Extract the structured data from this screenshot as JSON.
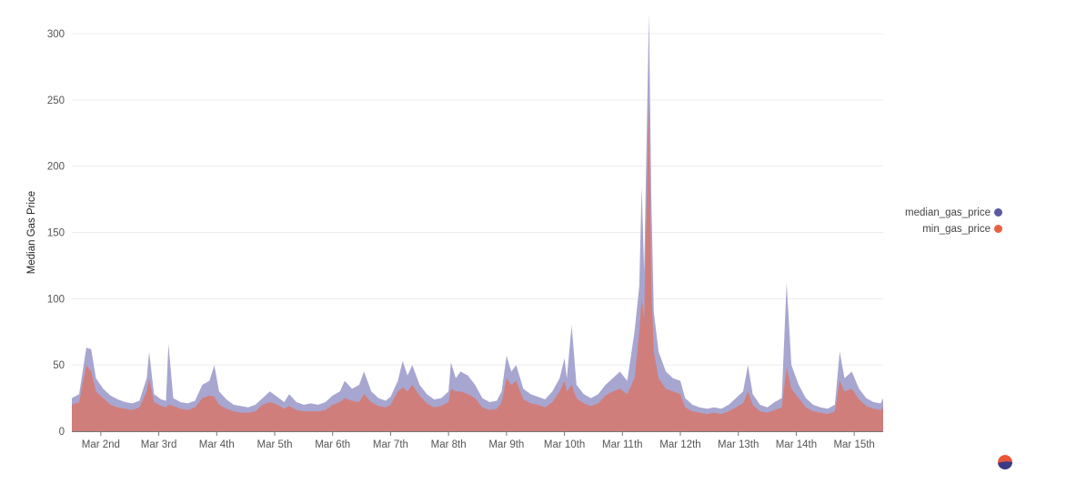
{
  "chart_data": {
    "type": "area",
    "stacked": false,
    "ylabel": "Median Gas Price",
    "xlabel": "",
    "ylim": [
      0,
      315
    ],
    "yticks": [
      0,
      50,
      100,
      150,
      200,
      250,
      300
    ],
    "xlim": [
      "2021-03-01T12:00",
      "2021-03-15T12:00"
    ],
    "categories": [
      "Mar 2nd",
      "Mar 3rd",
      "Mar 4th",
      "Mar 5th",
      "Mar 6th",
      "Mar 7th",
      "Mar 8th",
      "Mar 9th",
      "Mar 10th",
      "Mar 11th",
      "Mar 12th",
      "Mar 13th",
      "Mar 14th",
      "Mar 15th"
    ],
    "grid": true,
    "legend_position": "right",
    "series": [
      {
        "name": "median_gas_price",
        "color": "#a7a6d0",
        "values": [
          [
            "2021-03-01T12:00",
            25
          ],
          [
            "2021-03-01T15:00",
            28
          ],
          [
            "2021-03-01T18:00",
            63
          ],
          [
            "2021-03-01T20:00",
            62
          ],
          [
            "2021-03-01T22:00",
            40
          ],
          [
            "2021-03-02T01:00",
            32
          ],
          [
            "2021-03-02T04:00",
            27
          ],
          [
            "2021-03-02T07:00",
            24
          ],
          [
            "2021-03-02T10:00",
            22
          ],
          [
            "2021-03-02T13:00",
            21
          ],
          [
            "2021-03-02T16:00",
            23
          ],
          [
            "2021-03-02T19:00",
            40
          ],
          [
            "2021-03-02T20:00",
            60
          ],
          [
            "2021-03-02T22:00",
            28
          ],
          [
            "2021-03-03T01:00",
            24
          ],
          [
            "2021-03-03T03:00",
            23
          ],
          [
            "2021-03-03T04:00",
            66
          ],
          [
            "2021-03-03T06:00",
            25
          ],
          [
            "2021-03-03T09:00",
            22
          ],
          [
            "2021-03-03T12:00",
            21
          ],
          [
            "2021-03-03T15:00",
            23
          ],
          [
            "2021-03-03T18:00",
            35
          ],
          [
            "2021-03-03T21:00",
            38
          ],
          [
            "2021-03-03T23:00",
            50
          ],
          [
            "2021-03-04T01:00",
            30
          ],
          [
            "2021-03-04T04:00",
            24
          ],
          [
            "2021-03-04T07:00",
            20
          ],
          [
            "2021-03-04T10:00",
            19
          ],
          [
            "2021-03-04T13:00",
            18
          ],
          [
            "2021-03-04T16:00",
            20
          ],
          [
            "2021-03-04T19:00",
            25
          ],
          [
            "2021-03-04T22:00",
            30
          ],
          [
            "2021-03-05T01:00",
            26
          ],
          [
            "2021-03-05T04:00",
            22
          ],
          [
            "2021-03-05T06:00",
            28
          ],
          [
            "2021-03-05T09:00",
            22
          ],
          [
            "2021-03-05T12:00",
            20
          ],
          [
            "2021-03-05T15:00",
            21
          ],
          [
            "2021-03-05T18:00",
            20
          ],
          [
            "2021-03-05T21:00",
            22
          ],
          [
            "2021-03-06T00:00",
            27
          ],
          [
            "2021-03-06T03:00",
            30
          ],
          [
            "2021-03-06T05:00",
            38
          ],
          [
            "2021-03-06T08:00",
            32
          ],
          [
            "2021-03-06T11:00",
            35
          ],
          [
            "2021-03-06T13:00",
            45
          ],
          [
            "2021-03-06T16:00",
            30
          ],
          [
            "2021-03-06T19:00",
            25
          ],
          [
            "2021-03-06T22:00",
            23
          ],
          [
            "2021-03-07T00:00",
            26
          ],
          [
            "2021-03-07T03:00",
            38
          ],
          [
            "2021-03-07T05:00",
            53
          ],
          [
            "2021-03-07T07:00",
            42
          ],
          [
            "2021-03-07T09:00",
            50
          ],
          [
            "2021-03-07T12:00",
            35
          ],
          [
            "2021-03-07T15:00",
            28
          ],
          [
            "2021-03-07T18:00",
            24
          ],
          [
            "2021-03-07T21:00",
            25
          ],
          [
            "2021-03-08T00:00",
            30
          ],
          [
            "2021-03-08T01:00",
            52
          ],
          [
            "2021-03-08T03:00",
            40
          ],
          [
            "2021-03-08T05:00",
            45
          ],
          [
            "2021-03-08T08:00",
            42
          ],
          [
            "2021-03-08T11:00",
            35
          ],
          [
            "2021-03-08T14:00",
            25
          ],
          [
            "2021-03-08T17:00",
            22
          ],
          [
            "2021-03-08T20:00",
            23
          ],
          [
            "2021-03-08T22:00",
            30
          ],
          [
            "2021-03-09T00:00",
            57
          ],
          [
            "2021-03-09T02:00",
            45
          ],
          [
            "2021-03-09T04:00",
            50
          ],
          [
            "2021-03-09T07:00",
            32
          ],
          [
            "2021-03-09T10:00",
            28
          ],
          [
            "2021-03-09T13:00",
            26
          ],
          [
            "2021-03-09T16:00",
            24
          ],
          [
            "2021-03-09T19:00",
            30
          ],
          [
            "2021-03-09T22:00",
            40
          ],
          [
            "2021-03-10T00:00",
            55
          ],
          [
            "2021-03-10T01:00",
            40
          ],
          [
            "2021-03-10T03:00",
            80
          ],
          [
            "2021-03-10T05:00",
            35
          ],
          [
            "2021-03-10T08:00",
            28
          ],
          [
            "2021-03-10T11:00",
            25
          ],
          [
            "2021-03-10T14:00",
            28
          ],
          [
            "2021-03-10T17:00",
            35
          ],
          [
            "2021-03-10T20:00",
            40
          ],
          [
            "2021-03-10T23:00",
            45
          ],
          [
            "2021-03-11T02:00",
            38
          ],
          [
            "2021-03-11T05:00",
            75
          ],
          [
            "2021-03-11T07:00",
            110
          ],
          [
            "2021-03-11T08:00",
            185
          ],
          [
            "2021-03-11T09:00",
            120
          ],
          [
            "2021-03-11T11:00",
            315
          ],
          [
            "2021-03-11T12:00",
            175
          ],
          [
            "2021-03-11T13:00",
            90
          ],
          [
            "2021-03-11T15:00",
            60
          ],
          [
            "2021-03-11T18:00",
            45
          ],
          [
            "2021-03-11T21:00",
            40
          ],
          [
            "2021-03-12T00:00",
            38
          ],
          [
            "2021-03-12T02:00",
            25
          ],
          [
            "2021-03-12T05:00",
            20
          ],
          [
            "2021-03-12T08:00",
            18
          ],
          [
            "2021-03-12T11:00",
            17
          ],
          [
            "2021-03-12T14:00",
            18
          ],
          [
            "2021-03-12T17:00",
            17
          ],
          [
            "2021-03-12T20:00",
            20
          ],
          [
            "2021-03-12T23:00",
            25
          ],
          [
            "2021-03-13T02:00",
            30
          ],
          [
            "2021-03-13T04:00",
            50
          ],
          [
            "2021-03-13T06:00",
            28
          ],
          [
            "2021-03-13T09:00",
            20
          ],
          [
            "2021-03-13T12:00",
            18
          ],
          [
            "2021-03-13T15:00",
            22
          ],
          [
            "2021-03-13T18:00",
            25
          ],
          [
            "2021-03-13T20:00",
            112
          ],
          [
            "2021-03-13T22:00",
            50
          ],
          [
            "2021-03-14T01:00",
            35
          ],
          [
            "2021-03-14T04:00",
            25
          ],
          [
            "2021-03-14T07:00",
            20
          ],
          [
            "2021-03-14T10:00",
            18
          ],
          [
            "2021-03-14T13:00",
            17
          ],
          [
            "2021-03-14T16:00",
            20
          ],
          [
            "2021-03-14T18:00",
            60
          ],
          [
            "2021-03-14T20:00",
            40
          ],
          [
            "2021-03-14T23:00",
            45
          ],
          [
            "2021-03-15T02:00",
            32
          ],
          [
            "2021-03-15T05:00",
            25
          ],
          [
            "2021-03-15T08:00",
            22
          ],
          [
            "2021-03-15T11:00",
            21
          ],
          [
            "2021-03-15T12:00",
            25
          ]
        ]
      },
      {
        "name": "min_gas_price",
        "color": "#d07e7c",
        "values": [
          [
            "2021-03-01T12:00",
            20
          ],
          [
            "2021-03-01T15:00",
            22
          ],
          [
            "2021-03-01T18:00",
            50
          ],
          [
            "2021-03-01T20:00",
            45
          ],
          [
            "2021-03-01T22:00",
            30
          ],
          [
            "2021-03-02T01:00",
            25
          ],
          [
            "2021-03-02T04:00",
            20
          ],
          [
            "2021-03-02T07:00",
            18
          ],
          [
            "2021-03-02T10:00",
            17
          ],
          [
            "2021-03-02T13:00",
            16
          ],
          [
            "2021-03-02T16:00",
            18
          ],
          [
            "2021-03-02T19:00",
            30
          ],
          [
            "2021-03-02T20:00",
            40
          ],
          [
            "2021-03-02T22:00",
            22
          ],
          [
            "2021-03-03T01:00",
            19
          ],
          [
            "2021-03-03T03:00",
            18
          ],
          [
            "2021-03-03T04:00",
            20
          ],
          [
            "2021-03-03T06:00",
            19
          ],
          [
            "2021-03-03T09:00",
            17
          ],
          [
            "2021-03-03T12:00",
            16
          ],
          [
            "2021-03-03T15:00",
            18
          ],
          [
            "2021-03-03T18:00",
            25
          ],
          [
            "2021-03-03T21:00",
            27
          ],
          [
            "2021-03-03T23:00",
            26
          ],
          [
            "2021-03-04T01:00",
            20
          ],
          [
            "2021-03-04T04:00",
            17
          ],
          [
            "2021-03-04T07:00",
            15
          ],
          [
            "2021-03-04T10:00",
            14
          ],
          [
            "2021-03-04T13:00",
            14
          ],
          [
            "2021-03-04T16:00",
            15
          ],
          [
            "2021-03-04T19:00",
            20
          ],
          [
            "2021-03-04T22:00",
            22
          ],
          [
            "2021-03-05T01:00",
            20
          ],
          [
            "2021-03-05T04:00",
            17
          ],
          [
            "2021-03-05T06:00",
            19
          ],
          [
            "2021-03-05T09:00",
            16
          ],
          [
            "2021-03-05T12:00",
            15
          ],
          [
            "2021-03-05T15:00",
            15
          ],
          [
            "2021-03-05T18:00",
            15
          ],
          [
            "2021-03-05T21:00",
            16
          ],
          [
            "2021-03-06T00:00",
            20
          ],
          [
            "2021-03-06T03:00",
            22
          ],
          [
            "2021-03-06T05:00",
            25
          ],
          [
            "2021-03-06T08:00",
            23
          ],
          [
            "2021-03-06T11:00",
            22
          ],
          [
            "2021-03-06T13:00",
            28
          ],
          [
            "2021-03-06T16:00",
            22
          ],
          [
            "2021-03-06T19:00",
            19
          ],
          [
            "2021-03-06T22:00",
            18
          ],
          [
            "2021-03-07T00:00",
            20
          ],
          [
            "2021-03-07T03:00",
            30
          ],
          [
            "2021-03-07T05:00",
            33
          ],
          [
            "2021-03-07T07:00",
            30
          ],
          [
            "2021-03-07T09:00",
            35
          ],
          [
            "2021-03-07T12:00",
            27
          ],
          [
            "2021-03-07T15:00",
            21
          ],
          [
            "2021-03-07T18:00",
            18
          ],
          [
            "2021-03-07T21:00",
            19
          ],
          [
            "2021-03-08T00:00",
            22
          ],
          [
            "2021-03-08T01:00",
            32
          ],
          [
            "2021-03-08T03:00",
            30
          ],
          [
            "2021-03-08T05:00",
            30
          ],
          [
            "2021-03-08T08:00",
            28
          ],
          [
            "2021-03-08T11:00",
            25
          ],
          [
            "2021-03-08T14:00",
            18
          ],
          [
            "2021-03-08T17:00",
            16
          ],
          [
            "2021-03-08T20:00",
            17
          ],
          [
            "2021-03-08T22:00",
            22
          ],
          [
            "2021-03-09T00:00",
            40
          ],
          [
            "2021-03-09T02:00",
            35
          ],
          [
            "2021-03-09T04:00",
            38
          ],
          [
            "2021-03-09T07:00",
            24
          ],
          [
            "2021-03-09T10:00",
            21
          ],
          [
            "2021-03-09T13:00",
            20
          ],
          [
            "2021-03-09T16:00",
            18
          ],
          [
            "2021-03-09T19:00",
            22
          ],
          [
            "2021-03-09T22:00",
            30
          ],
          [
            "2021-03-10T00:00",
            38
          ],
          [
            "2021-03-10T01:00",
            30
          ],
          [
            "2021-03-10T03:00",
            35
          ],
          [
            "2021-03-10T05:00",
            25
          ],
          [
            "2021-03-10T08:00",
            21
          ],
          [
            "2021-03-10T11:00",
            19
          ],
          [
            "2021-03-10T14:00",
            21
          ],
          [
            "2021-03-10T17:00",
            27
          ],
          [
            "2021-03-10T20:00",
            30
          ],
          [
            "2021-03-10T23:00",
            32
          ],
          [
            "2021-03-11T02:00",
            28
          ],
          [
            "2021-03-11T05:00",
            40
          ],
          [
            "2021-03-11T07:00",
            75
          ],
          [
            "2021-03-11T08:00",
            100
          ],
          [
            "2021-03-11T09:00",
            85
          ],
          [
            "2021-03-11T11:00",
            250
          ],
          [
            "2021-03-11T12:00",
            110
          ],
          [
            "2021-03-11T13:00",
            60
          ],
          [
            "2021-03-11T15:00",
            40
          ],
          [
            "2021-03-11T18:00",
            32
          ],
          [
            "2021-03-11T21:00",
            30
          ],
          [
            "2021-03-12T00:00",
            28
          ],
          [
            "2021-03-12T02:00",
            18
          ],
          [
            "2021-03-12T05:00",
            15
          ],
          [
            "2021-03-12T08:00",
            14
          ],
          [
            "2021-03-12T11:00",
            13
          ],
          [
            "2021-03-12T14:00",
            14
          ],
          [
            "2021-03-12T17:00",
            13
          ],
          [
            "2021-03-12T20:00",
            15
          ],
          [
            "2021-03-12T23:00",
            18
          ],
          [
            "2021-03-13T02:00",
            21
          ],
          [
            "2021-03-13T04:00",
            30
          ],
          [
            "2021-03-13T06:00",
            20
          ],
          [
            "2021-03-13T09:00",
            15
          ],
          [
            "2021-03-13T12:00",
            14
          ],
          [
            "2021-03-13T15:00",
            16
          ],
          [
            "2021-03-13T18:00",
            18
          ],
          [
            "2021-03-13T20:00",
            48
          ],
          [
            "2021-03-13T22:00",
            32
          ],
          [
            "2021-03-14T01:00",
            25
          ],
          [
            "2021-03-14T04:00",
            18
          ],
          [
            "2021-03-14T07:00",
            15
          ],
          [
            "2021-03-14T10:00",
            14
          ],
          [
            "2021-03-14T13:00",
            13
          ],
          [
            "2021-03-14T16:00",
            15
          ],
          [
            "2021-03-14T18:00",
            38
          ],
          [
            "2021-03-14T20:00",
            30
          ],
          [
            "2021-03-14T23:00",
            32
          ],
          [
            "2021-03-15T02:00",
            24
          ],
          [
            "2021-03-15T05:00",
            19
          ],
          [
            "2021-03-15T08:00",
            17
          ],
          [
            "2021-03-15T11:00",
            16
          ],
          [
            "2021-03-15T12:00",
            18
          ]
        ]
      }
    ]
  },
  "logo": {
    "colors": [
      "#e8553a",
      "#3b3a86"
    ]
  }
}
